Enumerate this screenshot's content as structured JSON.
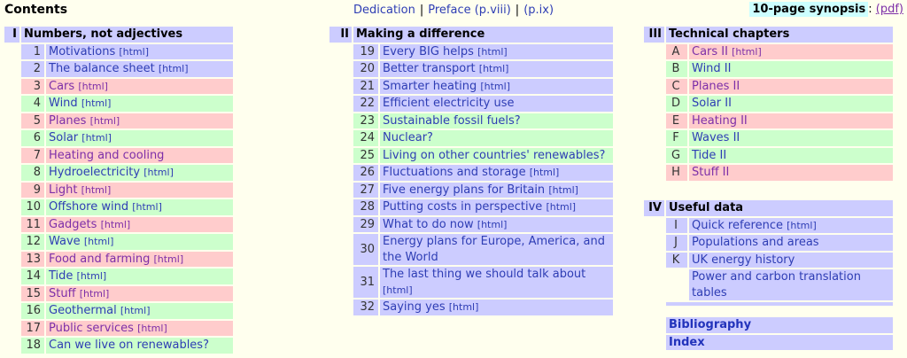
{
  "page_title": "Contents",
  "nav": {
    "separator": "|",
    "links": [
      {
        "label": "Dedication"
      },
      {
        "label": "Preface (p.viii)"
      },
      {
        "label": "(p.ix)"
      }
    ]
  },
  "synopsis": {
    "label": "10-page synopsis",
    "colon": ":",
    "pdf_link": "(pdf)"
  },
  "labels": {
    "html_suffix": "[html]"
  },
  "colors": {
    "page_bg": "#ffffee",
    "row_lavender": "#ccccff",
    "row_pink": "#ffcccc",
    "row_green": "#ccffcc",
    "synopsis_highlight": "#ccffff",
    "link_blue": "#2e3db4",
    "link_visited_purple": "#7d2fa8"
  },
  "sections": [
    {
      "numeral": "I",
      "title": "Numbers, not adjectives",
      "rows": [
        {
          "num": "1",
          "label": "Motivations",
          "html": true,
          "bg": "lavender",
          "visited": false
        },
        {
          "num": "2",
          "label": "The balance sheet",
          "html": true,
          "bg": "lavender",
          "visited": false
        },
        {
          "num": "3",
          "label": "Cars",
          "html": true,
          "bg": "pink",
          "visited": true
        },
        {
          "num": "4",
          "label": "Wind",
          "html": true,
          "bg": "green",
          "visited": false
        },
        {
          "num": "5",
          "label": "Planes",
          "html": true,
          "bg": "pink",
          "visited": true
        },
        {
          "num": "6",
          "label": "Solar",
          "html": true,
          "bg": "green",
          "visited": false
        },
        {
          "num": "7",
          "label": "Heating and cooling",
          "html": false,
          "bg": "pink",
          "visited": true
        },
        {
          "num": "8",
          "label": "Hydroelectricity",
          "html": true,
          "bg": "green",
          "visited": false
        },
        {
          "num": "9",
          "label": "Light",
          "html": true,
          "bg": "pink",
          "visited": true
        },
        {
          "num": "10",
          "label": "Offshore wind",
          "html": true,
          "bg": "green",
          "visited": false
        },
        {
          "num": "11",
          "label": "Gadgets",
          "html": true,
          "bg": "pink",
          "visited": true
        },
        {
          "num": "12",
          "label": "Wave",
          "html": true,
          "bg": "green",
          "visited": false
        },
        {
          "num": "13",
          "label": "Food and farming",
          "html": true,
          "bg": "pink",
          "visited": true
        },
        {
          "num": "14",
          "label": "Tide",
          "html": true,
          "bg": "green",
          "visited": false
        },
        {
          "num": "15",
          "label": "Stuff",
          "html": true,
          "bg": "pink",
          "visited": true
        },
        {
          "num": "16",
          "label": "Geothermal",
          "html": true,
          "bg": "green",
          "visited": false
        },
        {
          "num": "17",
          "label": "Public services",
          "html": true,
          "bg": "pink",
          "visited": true
        },
        {
          "num": "18",
          "label": "Can we live on renewables?",
          "html": false,
          "bg": "green",
          "visited": false
        }
      ]
    },
    {
      "numeral": "II",
      "title": "Making a difference",
      "rows": [
        {
          "num": "19",
          "label": "Every BIG helps",
          "html": true,
          "bg": "lavender",
          "visited": false
        },
        {
          "num": "20",
          "label": "Better transport",
          "html": true,
          "bg": "lavender",
          "visited": false
        },
        {
          "num": "21",
          "label": "Smarter heating",
          "html": true,
          "bg": "lavender",
          "visited": false
        },
        {
          "num": "22",
          "label": "Efficient electricity use",
          "html": false,
          "bg": "lavender",
          "visited": false
        },
        {
          "num": "23",
          "label": "Sustainable fossil fuels?",
          "html": false,
          "bg": "green",
          "visited": false
        },
        {
          "num": "24",
          "label": "Nuclear?",
          "html": false,
          "bg": "green",
          "visited": false
        },
        {
          "num": "25",
          "label": "Living on other countries' renewables?",
          "html": false,
          "bg": "green",
          "visited": false
        },
        {
          "num": "26",
          "label": "Fluctuations and storage",
          "html": true,
          "bg": "lavender",
          "visited": false
        },
        {
          "num": "27",
          "label": "Five energy plans for Britain",
          "html": true,
          "bg": "lavender",
          "visited": false
        },
        {
          "num": "28",
          "label": "Putting costs in perspective",
          "html": true,
          "bg": "lavender",
          "visited": false
        },
        {
          "num": "29",
          "label": "What to do now",
          "html": true,
          "bg": "lavender",
          "visited": false
        },
        {
          "num": "30",
          "label": "Energy plans for Europe, America, and the World",
          "html": false,
          "bg": "lavender",
          "visited": false
        },
        {
          "num": "31",
          "label": "The last thing we should talk about",
          "html": true,
          "bg": "lavender",
          "visited": false
        },
        {
          "num": "32",
          "label": "Saying yes",
          "html": true,
          "bg": "lavender",
          "visited": false
        }
      ]
    },
    {
      "numeral": "III",
      "title": "Technical chapters",
      "letters": true,
      "rows": [
        {
          "num": "A",
          "label": "Cars II",
          "html": true,
          "bg": "pink",
          "visited": true
        },
        {
          "num": "B",
          "label": "Wind II",
          "html": false,
          "bg": "green",
          "visited": false
        },
        {
          "num": "C",
          "label": "Planes II",
          "html": false,
          "bg": "pink",
          "visited": true
        },
        {
          "num": "D",
          "label": "Solar II",
          "html": false,
          "bg": "green",
          "visited": false
        },
        {
          "num": "E",
          "label": "Heating II",
          "html": false,
          "bg": "pink",
          "visited": true
        },
        {
          "num": "F",
          "label": "Waves II",
          "html": false,
          "bg": "green",
          "visited": false
        },
        {
          "num": "G",
          "label": "Tide II",
          "html": false,
          "bg": "green",
          "visited": false
        },
        {
          "num": "H",
          "label": "Stuff II",
          "html": false,
          "bg": "pink",
          "visited": true
        }
      ]
    },
    {
      "numeral": "IV",
      "title": "Useful data",
      "letters": true,
      "has_bottom_filler": true,
      "rows": [
        {
          "num": "I",
          "label": "Quick reference",
          "html": true,
          "bg": "lavender",
          "visited": false
        },
        {
          "num": "J",
          "label": "Populations and areas",
          "html": false,
          "bg": "lavender",
          "visited": false
        },
        {
          "num": "K",
          "label": "UK energy history",
          "html": false,
          "bg": "lavender",
          "visited": false
        },
        {
          "num": "",
          "label": "Power and carbon translation tables",
          "html": false,
          "bg": "lavender",
          "visited": false
        }
      ]
    }
  ],
  "extras": {
    "items": [
      {
        "label": "Bibliography"
      },
      {
        "label": "Index"
      }
    ]
  }
}
